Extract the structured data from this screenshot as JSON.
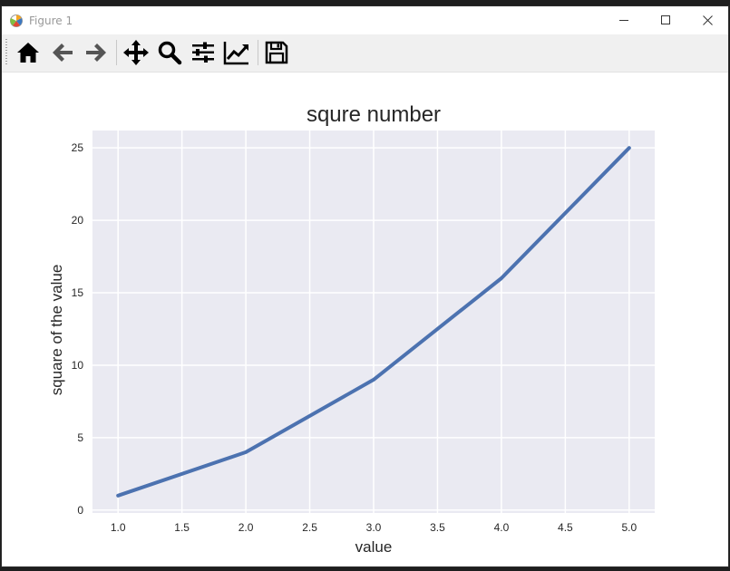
{
  "window": {
    "title": "Figure 1",
    "controls": [
      "minimize",
      "maximize",
      "close"
    ]
  },
  "toolbar": {
    "buttons": [
      {
        "name": "home",
        "icon": "home-icon"
      },
      {
        "name": "back",
        "icon": "arrow-left-icon"
      },
      {
        "name": "forward",
        "icon": "arrow-right-icon"
      },
      {
        "name": "pan",
        "icon": "move-icon"
      },
      {
        "name": "zoom",
        "icon": "magnifier-icon"
      },
      {
        "name": "subplots",
        "icon": "sliders-icon"
      },
      {
        "name": "customize",
        "icon": "chart-line-icon"
      },
      {
        "name": "save",
        "icon": "floppy-disk-icon"
      }
    ]
  },
  "colors": {
    "axes_background": "#eaeaf2",
    "grid": "#ffffff",
    "line": "#4c72b0"
  },
  "chart_data": {
    "type": "line",
    "title": "squre number",
    "xlabel": "value",
    "ylabel": "square of the value",
    "x": [
      1,
      2,
      3,
      4,
      5
    ],
    "series": [
      {
        "values": [
          1,
          4,
          9,
          16,
          25
        ]
      }
    ],
    "xlim": [
      0.8,
      5.2
    ],
    "ylim": [
      -0.2,
      26.2
    ],
    "xticks": [
      "1.0",
      "1.5",
      "2.0",
      "2.5",
      "3.0",
      "3.5",
      "4.0",
      "4.5",
      "5.0"
    ],
    "yticks": [
      "0",
      "5",
      "10",
      "15",
      "20",
      "25"
    ],
    "grid": true
  }
}
